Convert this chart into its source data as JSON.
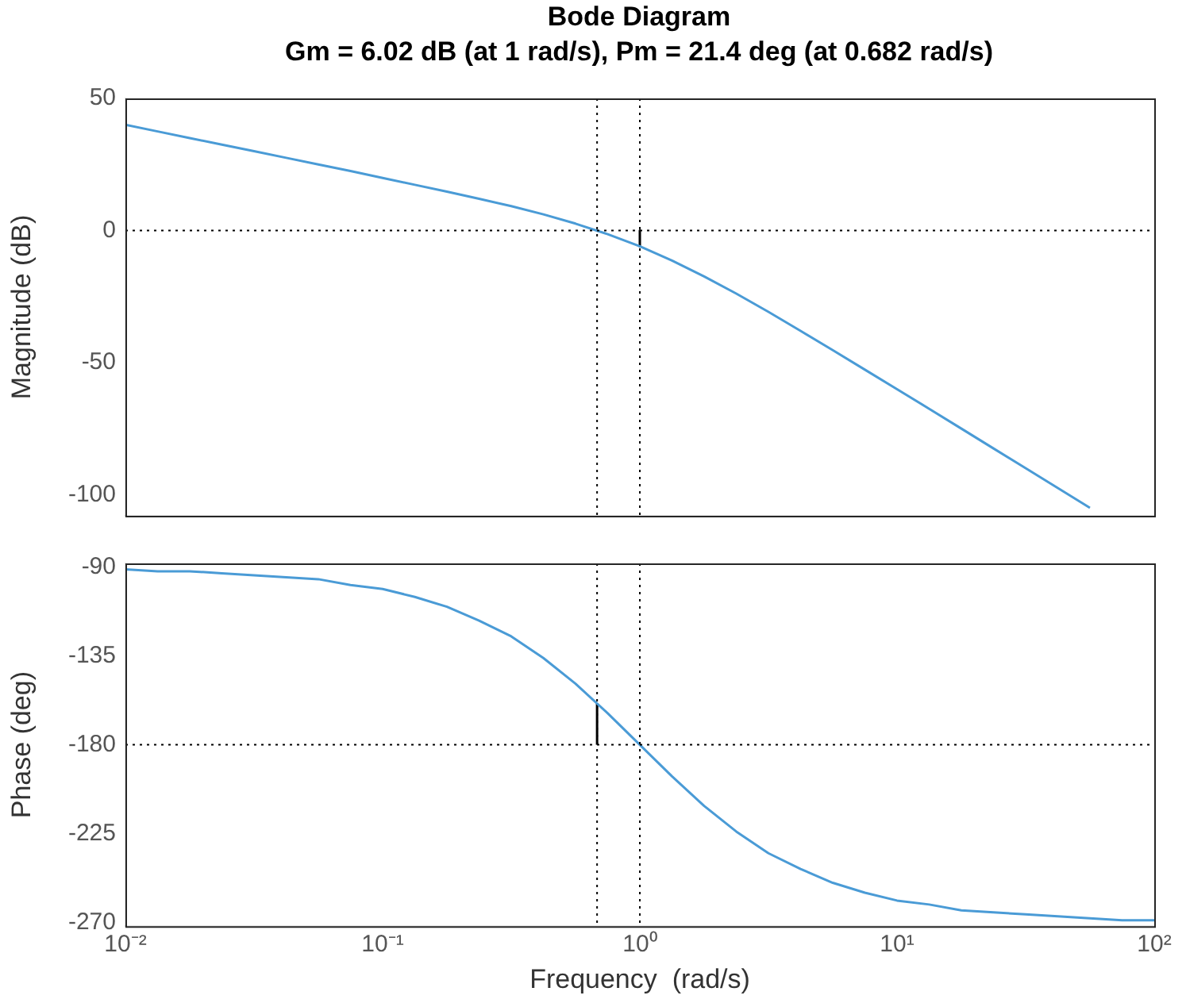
{
  "chart_data": [
    {
      "type": "line",
      "title": "Bode Diagram",
      "subtitle": "Gm = 6.02 dB (at 1 rad/s),  Pm = 21.4 deg (at 0.682 rad/s)",
      "ylabel": "Magnitude (dB)",
      "log": "x",
      "xlim": [
        0.01,
        100
      ],
      "ylim": [
        -108,
        50
      ],
      "yticks": [
        -100,
        -50,
        0,
        50
      ],
      "grid": false,
      "legend": false,
      "marker": "none",
      "tick_labels": "y",
      "ref_lines": [
        {
          "axis": "y",
          "value": 0,
          "color": "#000000",
          "line_style": "dotted"
        },
        {
          "axis": "x",
          "value": 0.682,
          "color": "#000000",
          "line_style": "dotted"
        },
        {
          "axis": "x",
          "value": 1,
          "color": "#000000",
          "line_style": "dotted"
        }
      ],
      "series": [
        {
          "color": "#4a9bd6",
          "x": [
            0.01,
            0.01334,
            0.01778,
            0.02371,
            0.03162,
            0.04217,
            0.05623,
            0.07499,
            0.1,
            0.1334,
            0.1778,
            0.2371,
            0.3162,
            0.4217,
            0.5623,
            0.7499,
            1,
            1.334,
            1.778,
            2.371,
            3.162,
            4.217,
            5.623,
            7.499,
            10,
            13.34,
            17.78,
            23.71,
            31.62,
            42.17,
            56.23
          ],
          "values": [
            40.0,
            37.5,
            35.0,
            32.5,
            30.0,
            27.5,
            25.0,
            22.5,
            19.9,
            17.3,
            14.7,
            12.0,
            9.2,
            6.1,
            2.6,
            -1.4,
            -6.0,
            -11.4,
            -17.4,
            -23.9,
            -30.8,
            -38.0,
            -45.3,
            -52.7,
            -60.1,
            -67.5,
            -75.0,
            -82.5,
            -90.0,
            -97.5,
            -105.0
          ]
        },
        {
          "type": "line",
          "color": "#000000",
          "x": [
            1,
            1
          ],
          "values": [
            0,
            -6
          ]
        }
      ]
    },
    {
      "type": "line",
      "xlabel": "Frequency  (rad/s)",
      "ylabel": "Phase (deg)",
      "log": "x",
      "xlim": [
        0.01,
        100
      ],
      "ylim": [
        -272,
        -88
      ],
      "yticks": [
        -270,
        -225,
        -180,
        -135,
        -90
      ],
      "grid": false,
      "legend": false,
      "marker": "none",
      "xticks": [
        {
          "value": 0.01,
          "label": "10⁻²"
        },
        {
          "value": 0.1,
          "label": "10⁻¹"
        },
        {
          "value": 1,
          "label": "10⁰"
        },
        {
          "value": 10,
          "label": "10¹"
        },
        {
          "value": 100,
          "label": "10²"
        }
      ],
      "ref_lines": [
        {
          "axis": "y",
          "value": -180,
          "color": "#000000",
          "line_style": "dotted"
        },
        {
          "axis": "x",
          "value": 0.682,
          "color": "#000000",
          "line_style": "dotted"
        },
        {
          "axis": "x",
          "value": 1,
          "color": "#000000",
          "line_style": "dotted"
        }
      ],
      "series": [
        {
          "color": "#4a9bd6",
          "x": [
            0.01,
            0.01334,
            0.01778,
            0.02371,
            0.03162,
            0.04217,
            0.05623,
            0.07499,
            0.1,
            0.1334,
            0.1778,
            0.2371,
            0.3162,
            0.4217,
            0.5623,
            0.7499,
            1,
            1.334,
            1.778,
            2.371,
            3.162,
            4.217,
            5.623,
            7.499,
            10,
            13.34,
            17.78,
            23.71,
            31.62,
            42.17,
            56.23,
            74.99,
            100
          ],
          "values": [
            -91,
            -92,
            -92,
            -93,
            -94,
            -95,
            -96,
            -99,
            -101,
            -105,
            -110,
            -117,
            -125,
            -136,
            -149,
            -164,
            -180,
            -196,
            -211,
            -224,
            -235,
            -243,
            -250,
            -255,
            -259,
            -261,
            -264,
            -265,
            -266,
            -267,
            -268,
            -269,
            -269
          ]
        },
        {
          "type": "line",
          "color": "#000000",
          "x": [
            0.682,
            0.682
          ],
          "values": [
            -180,
            -159
          ]
        }
      ]
    }
  ]
}
